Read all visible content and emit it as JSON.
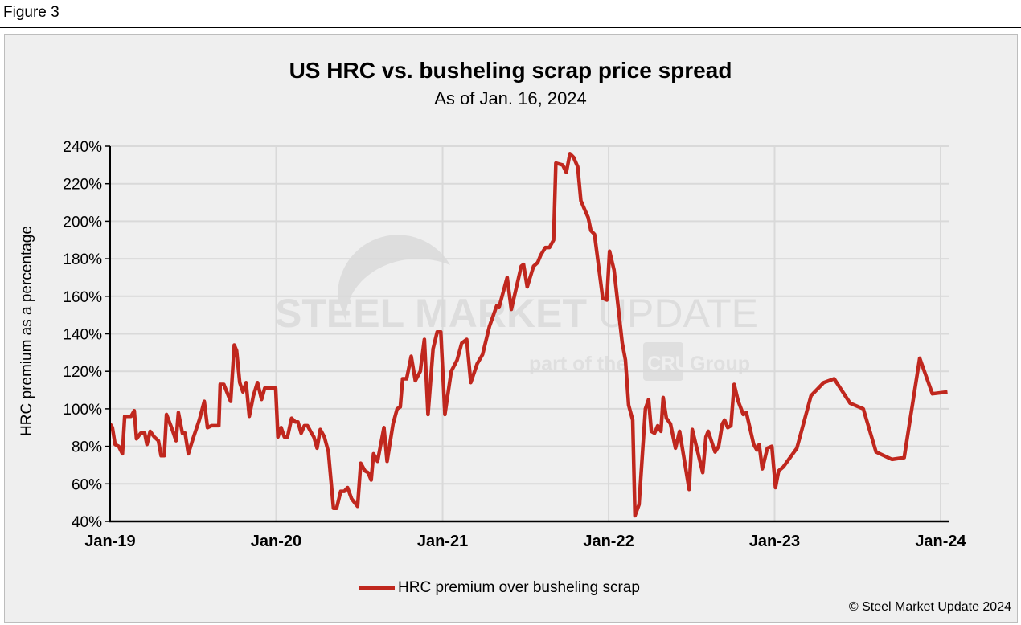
{
  "figure_label": "Figure 3",
  "watermark": {
    "line1_bold": "STEEL MARKET",
    "line1_light": "UPDATE",
    "line2": "part of the",
    "logo": "CRU",
    "line2_end": "Group"
  },
  "copyright": "© Steel Market Update 2024",
  "colors": {
    "series": "#c0271e",
    "panel": "#efefef",
    "grid": "#d9d9d9"
  },
  "chart_data": {
    "type": "line",
    "title": "US HRC vs. busheling scrap price spread",
    "subtitle": "As of Jan. 16, 2024",
    "xlabel": "",
    "ylabel": "HRC premium as a percentage",
    "ylim": [
      40,
      240
    ],
    "yticks": [
      40,
      60,
      80,
      100,
      120,
      140,
      160,
      180,
      200,
      220,
      240
    ],
    "ytick_labels": [
      "40%",
      "60%",
      "80%",
      "100%",
      "120%",
      "140%",
      "160%",
      "180%",
      "200%",
      "220%",
      "240%"
    ],
    "xticks": [
      "2019-01-01",
      "2020-01-01",
      "2021-01-01",
      "2022-01-01",
      "2023-01-01",
      "2024-01-01"
    ],
    "xtick_labels": [
      "Jan-19",
      "Jan-20",
      "Jan-21",
      "Jan-22",
      "Jan-23",
      "Jan-24"
    ],
    "grid": true,
    "legend_position": "bottom",
    "series": [
      {
        "name": "HRC premium over busheling scrap",
        "x": [
          "2019-01-01",
          "2019-01-06",
          "2019-01-12",
          "2019-01-20",
          "2019-01-28",
          "2019-02-02",
          "2019-02-16",
          "2019-02-23",
          "2019-02-28",
          "2019-03-09",
          "2019-03-18",
          "2019-03-23",
          "2019-03-30",
          "2019-04-08",
          "2019-04-17",
          "2019-04-23",
          "2019-04-30",
          "2019-05-05",
          "2019-05-16",
          "2019-05-26",
          "2019-05-31",
          "2019-06-09",
          "2019-06-15",
          "2019-06-22",
          "2019-07-02",
          "2019-07-16",
          "2019-07-27",
          "2019-08-03",
          "2019-08-12",
          "2019-08-28",
          "2019-08-31",
          "2019-09-08",
          "2019-09-23",
          "2019-10-01",
          "2019-10-06",
          "2019-10-13",
          "2019-10-20",
          "2019-10-27",
          "2019-11-03",
          "2019-11-12",
          "2019-11-21",
          "2019-11-30",
          "2019-12-07",
          "2019-12-23",
          "2019-12-31",
          "2020-01-05",
          "2020-01-12",
          "2020-01-19",
          "2020-01-26",
          "2020-02-04",
          "2020-02-12",
          "2020-02-18",
          "2020-02-25",
          "2020-03-03",
          "2020-03-10",
          "2020-03-19",
          "2020-03-24",
          "2020-03-31",
          "2020-04-07",
          "2020-04-16",
          "2020-04-25",
          "2020-05-06",
          "2020-05-13",
          "2020-05-22",
          "2020-05-30",
          "2020-06-06",
          "2020-06-15",
          "2020-06-28",
          "2020-07-05",
          "2020-07-14",
          "2020-07-21",
          "2020-07-28",
          "2020-08-02",
          "2020-08-11",
          "2020-08-25",
          "2020-09-01",
          "2020-09-14",
          "2020-09-23",
          "2020-09-30",
          "2020-10-05",
          "2020-10-14",
          "2020-10-24",
          "2020-11-02",
          "2020-11-13",
          "2020-11-22",
          "2020-11-30",
          "2020-12-11",
          "2020-12-20",
          "2020-12-28",
          "2021-01-06",
          "2021-01-20",
          "2021-02-02",
          "2021-02-12",
          "2021-02-23",
          "2021-03-04",
          "2021-03-18",
          "2021-03-30",
          "2021-04-14",
          "2021-04-30",
          "2021-05-05",
          "2021-05-23",
          "2021-06-01",
          "2021-06-23",
          "2021-06-28",
          "2021-07-06",
          "2021-07-20",
          "2021-07-29",
          "2021-08-05",
          "2021-08-15",
          "2021-08-24",
          "2021-09-02",
          "2021-09-07",
          "2021-09-22",
          "2021-09-30",
          "2021-10-08",
          "2021-10-16",
          "2021-10-25",
          "2021-11-01",
          "2021-11-08",
          "2021-11-17",
          "2021-11-23",
          "2021-12-01",
          "2021-12-19",
          "2021-12-28",
          "2022-01-03",
          "2022-01-13",
          "2022-01-31",
          "2022-02-07",
          "2022-02-14",
          "2022-02-23",
          "2022-02-28",
          "2022-03-09",
          "2022-03-23",
          "2022-03-30",
          "2022-04-05",
          "2022-04-12",
          "2022-04-19",
          "2022-04-26",
          "2022-05-01",
          "2022-05-08",
          "2022-05-17",
          "2022-05-28",
          "2022-06-06",
          "2022-06-27",
          "2022-07-04",
          "2022-07-27",
          "2022-08-03",
          "2022-08-08",
          "2022-08-23",
          "2022-08-31",
          "2022-09-08",
          "2022-09-13",
          "2022-09-20",
          "2022-09-27",
          "2022-10-04",
          "2022-10-13",
          "2022-10-24",
          "2022-10-31",
          "2022-11-16",
          "2022-11-23",
          "2022-11-28",
          "2022-12-05",
          "2022-12-16",
          "2022-12-26",
          "2023-01-03",
          "2023-01-10",
          "2023-01-20",
          "2023-02-19",
          "2023-03-22",
          "2023-04-19",
          "2023-05-12",
          "2023-06-16",
          "2023-07-15",
          "2023-08-12",
          "2023-09-16",
          "2023-10-13",
          "2023-11-16",
          "2023-12-14",
          "2024-01-16"
        ],
        "values": [
          92,
          90,
          81,
          80,
          76,
          96,
          96,
          99,
          84,
          87,
          87,
          81,
          88,
          85,
          83,
          75,
          75,
          97,
          90,
          83,
          98,
          87,
          87,
          76,
          84,
          94,
          104,
          90,
          91,
          91,
          113,
          113,
          104,
          134,
          131,
          114,
          109,
          114,
          96,
          107,
          114,
          105,
          111,
          111,
          111,
          85,
          90,
          85,
          85,
          95,
          93,
          93,
          87,
          91,
          91,
          87,
          85,
          79,
          89,
          85,
          77,
          47,
          47,
          56,
          56,
          58,
          52,
          48,
          71,
          67,
          66,
          62,
          76,
          72,
          90,
          72,
          92,
          100,
          101,
          116,
          116,
          128,
          115,
          120,
          137,
          97,
          132,
          141,
          141,
          97,
          120,
          126,
          135,
          137,
          114,
          124,
          129,
          144,
          155,
          154,
          170,
          153,
          176,
          177,
          165,
          176,
          178,
          182,
          186,
          186,
          190,
          231,
          230,
          226,
          236,
          234,
          229,
          211,
          207,
          202,
          195,
          193,
          159,
          158,
          184,
          174,
          135,
          126,
          102,
          94,
          43,
          49,
          100,
          105,
          88,
          87,
          91,
          88,
          106,
          95,
          92,
          79,
          88,
          57,
          89,
          66,
          85,
          88,
          77,
          80,
          92,
          94,
          90,
          91,
          113,
          104,
          97,
          98,
          81,
          78,
          81,
          68,
          79,
          80,
          58,
          67,
          69,
          79,
          107,
          114,
          116,
          103,
          100,
          77,
          73,
          74,
          127,
          108,
          109
        ]
      }
    ]
  }
}
